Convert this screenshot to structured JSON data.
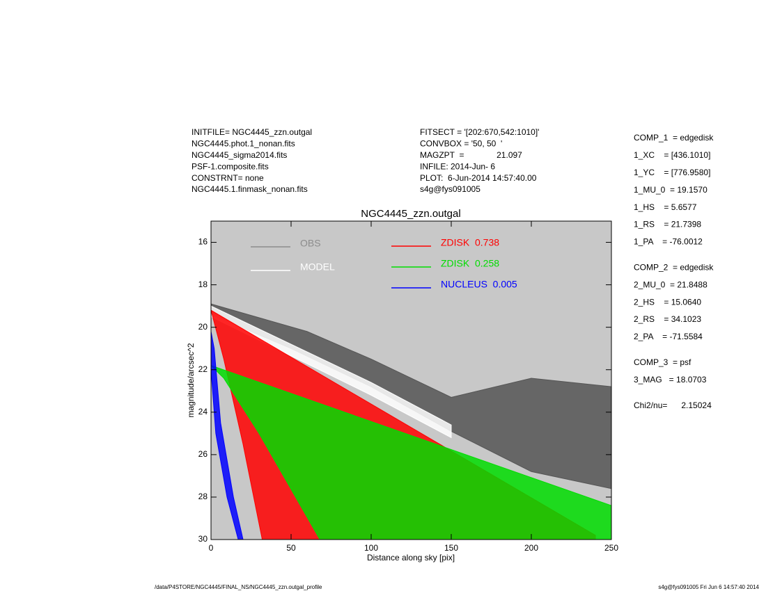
{
  "header": {
    "left": [
      "INITFILE= NGC4445_zzn.outgal",
      "NGC4445.phot.1_nonan.fits",
      "NGC4445_sigma2014.fits",
      "PSF-1.composite.fits",
      "CONSTRNT= none",
      "NGC4445.1.finmask_nonan.fits"
    ],
    "middle": [
      "FITSECT = '[202:670,542:1010]'",
      "CONVBOX = '50, 50  '",
      "MAGZPT  =              21.097",
      "INFILE: 2014-Jun- 6",
      "PLOT:  6-Jun-2014 14:57:40.00",
      "s4g@fys091005"
    ]
  },
  "right_panel": [
    [
      "COMP_1  = edgedisk",
      "1_XC    = [436.1010]",
      "1_YC    = [776.9580]",
      "1_MU_0  = 19.1570",
      "1_HS    = 5.6577",
      "1_RS    = 21.7398",
      "1_PA    = -76.0012"
    ],
    [
      "COMP_2  = edgedisk",
      "2_MU_0  = 21.8488",
      "2_HS    = 15.0640",
      "2_RS    = 34.1023",
      "2_PA    = -71.5584"
    ],
    [
      "COMP_3  = psf",
      "3_MAG   = 18.0703"
    ],
    [
      "Chi2/nu=      2.15024"
    ]
  ],
  "footer": {
    "left": "/data/P4STORE/NGC4445/FINAL_NS/NGC4445_zzn.outgal_profile",
    "right": "s4g@fys091005  Fri Jun  6 14:57:40 2014"
  },
  "chart_data": {
    "type": "scatter",
    "title": "NGC4445_zzn.outgal",
    "x_label": "Distance along sky [pix]",
    "y_label": "magnitude/arcsec^2",
    "xlim": [
      0,
      250
    ],
    "ylim": [
      30,
      15
    ],
    "xticks": [
      0,
      50,
      100,
      150,
      200,
      250
    ],
    "yticks": [
      16,
      18,
      20,
      22,
      24,
      26,
      28,
      30
    ],
    "background": "#c8c8c8",
    "series": [
      {
        "name": "OBS",
        "color": "#555555",
        "legend_color": "#8c8c8c",
        "x": [
          0,
          60,
          100,
          150,
          200,
          250,
          250,
          200,
          150,
          100,
          50,
          0
        ],
        "y": [
          18.9,
          20.2,
          21.5,
          23.3,
          22.4,
          22.8,
          27.6,
          26.8,
          24.9,
          22.8,
          21.0,
          19.4
        ]
      },
      {
        "name": "MODEL",
        "color": "#ffffff",
        "legend_color": "#ffffff",
        "x": [
          0,
          100,
          150,
          150,
          100,
          0
        ],
        "y": [
          19.0,
          22.6,
          24.6,
          25.2,
          23.2,
          19.5
        ]
      },
      {
        "name": "ZDISK  0.738",
        "color": "#ff0000",
        "legend_color": "#ff0000",
        "x": [
          0,
          240,
          240,
          32,
          20,
          8,
          0
        ],
        "y": [
          19.2,
          29.8,
          30,
          30,
          25.5,
          21.5,
          19.2
        ]
      },
      {
        "name": "ZDISK  0.258",
        "color": "#00dd00",
        "legend_color": "#00dd00",
        "x": [
          0,
          250,
          250,
          68,
          30,
          8,
          0
        ],
        "y": [
          21.8,
          28.4,
          30,
          30,
          25.0,
          22.4,
          21.8
        ]
      },
      {
        "name": "NUCLEUS  0.005",
        "color": "#0000ff",
        "legend_color": "#0000ff",
        "x": [
          0,
          2,
          6,
          14,
          20,
          17,
          10,
          3,
          0
        ],
        "y": [
          20.2,
          21.0,
          24.5,
          28.0,
          30,
          30,
          28.0,
          25.0,
          22.0
        ]
      }
    ]
  }
}
